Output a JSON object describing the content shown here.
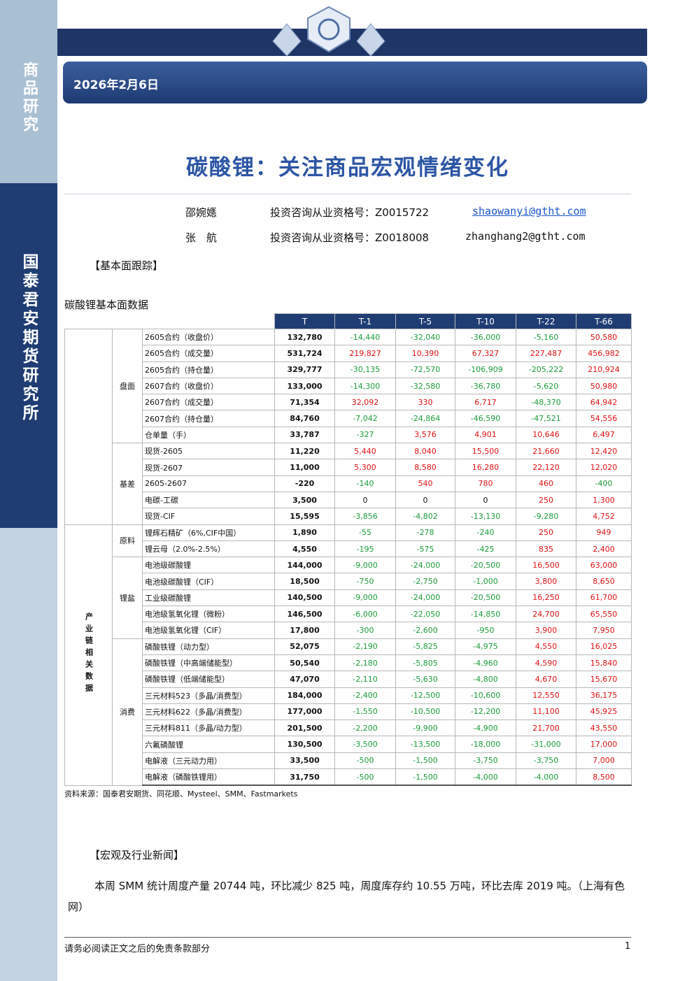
{
  "sidebar": {
    "top_label": "商品研究",
    "bottom_label": "国泰君安期货研究所"
  },
  "header": {
    "date": "2026年2月6日"
  },
  "title": "碳酸锂：关注商品宏观情绪变化",
  "authors": [
    {
      "name": "邵婉嫕",
      "qualification": "投资咨询从业资格号：Z0015722",
      "email": "shaowanyi@gtht.com"
    },
    {
      "name": "张　航",
      "qualification": "投资咨询从业资格号：Z0018008",
      "email": "zhanghang2@gtht.com"
    }
  ],
  "section1": "【基本面跟踪】",
  "table": {
    "caption": "碳酸锂基本面数据",
    "columns": [
      "T",
      "T-1",
      "T-5",
      "T-10",
      "T-22",
      "T-66"
    ],
    "blocks": [
      {
        "groups": [
          {
            "label": "盘面",
            "rows": [
              {
                "label": "2605合约（收盘价）",
                "values": [
                  "132,780",
                  "-14,440",
                  "-32,040",
                  "-36,000",
                  "-5,160",
                  "50,580"
                ]
              },
              {
                "label": "2605合约（成交量）",
                "values": [
                  "531,724",
                  "219,827",
                  "10,390",
                  "67,327",
                  "227,487",
                  "456,982"
                ]
              },
              {
                "label": "2605合约（持仓量）",
                "values": [
                  "329,777",
                  "-30,135",
                  "-72,570",
                  "-106,909",
                  "-205,222",
                  "210,924"
                ]
              },
              {
                "label": "2607合约（收盘价）",
                "values": [
                  "133,000",
                  "-14,300",
                  "-32,580",
                  "-36,780",
                  "-5,620",
                  "50,980"
                ]
              },
              {
                "label": "2607合约（成交量）",
                "values": [
                  "71,354",
                  "32,092",
                  "330",
                  "6,717",
                  "-48,370",
                  "64,942"
                ]
              },
              {
                "label": "2607合约（持仓量）",
                "values": [
                  "84,760",
                  "-7,042",
                  "-24,864",
                  "-46,590",
                  "-47,521",
                  "54,556"
                ]
              },
              {
                "label": "仓单量（手）",
                "values": [
                  "33,787",
                  "-327",
                  "3,576",
                  "4,901",
                  "10,646",
                  "6,497"
                ]
              }
            ]
          },
          {
            "label": "基差",
            "rows": [
              {
                "label": "现货-2605",
                "values": [
                  "11,220",
                  "5,440",
                  "8,040",
                  "15,500",
                  "21,660",
                  "12,420"
                ]
              },
              {
                "label": "现货-2607",
                "values": [
                  "11,000",
                  "5,300",
                  "8,580",
                  "16,280",
                  "22,120",
                  "12,020"
                ]
              },
              {
                "label": "2605-2607",
                "values": [
                  "-220",
                  "-140",
                  "540",
                  "780",
                  "460",
                  "-400"
                ]
              },
              {
                "label": "电碳-工碳",
                "values": [
                  "3,500",
                  "0",
                  "0",
                  "0",
                  "250",
                  "1,300"
                ]
              },
              {
                "label": "现货-CIF",
                "values": [
                  "15,595",
                  "-3,856",
                  "-4,802",
                  "-13,130",
                  "-9,280",
                  "4,752"
                ]
              }
            ]
          }
        ]
      },
      {
        "label": "产业链相关数据",
        "groups": [
          {
            "label": "原料",
            "rows": [
              {
                "label": "锂辉石精矿（6%,CIF中国）",
                "values": [
                  "1,890",
                  "-55",
                  "-278",
                  "-240",
                  "250",
                  "949"
                ]
              },
              {
                "label": "锂云母（2.0%-2.5%）",
                "values": [
                  "4,550",
                  "-195",
                  "-575",
                  "-425",
                  "835",
                  "2,400"
                ]
              }
            ]
          },
          {
            "label": "锂盐",
            "rows": [
              {
                "label": "电池级碳酸锂",
                "values": [
                  "144,000",
                  "-9,000",
                  "-24,000",
                  "-20,500",
                  "16,500",
                  "63,000"
                ]
              },
              {
                "label": "电池级碳酸锂（CIF）",
                "values": [
                  "18,500",
                  "-750",
                  "-2,750",
                  "-1,000",
                  "3,800",
                  "8,650"
                ]
              },
              {
                "label": "工业级碳酸锂",
                "values": [
                  "140,500",
                  "-9,000",
                  "-24,000",
                  "-20,500",
                  "16,250",
                  "61,700"
                ]
              },
              {
                "label": "电池级氢氧化锂（微粉）",
                "values": [
                  "146,500",
                  "-6,000",
                  "-22,050",
                  "-14,850",
                  "24,700",
                  "65,550"
                ]
              },
              {
                "label": "电池级氢氧化锂（CIF）",
                "values": [
                  "17,800",
                  "-300",
                  "-2,600",
                  "-950",
                  "3,900",
                  "7,950"
                ]
              }
            ]
          },
          {
            "label": "消费",
            "rows": [
              {
                "label": "磷酸铁锂（动力型）",
                "values": [
                  "52,075",
                  "-2,190",
                  "-5,825",
                  "-4,975",
                  "4,550",
                  "16,025"
                ]
              },
              {
                "label": "磷酸铁锂（中高端储能型）",
                "values": [
                  "50,540",
                  "-2,180",
                  "-5,805",
                  "-4,960",
                  "4,590",
                  "15,840"
                ]
              },
              {
                "label": "磷酸铁锂（低端储能型）",
                "values": [
                  "47,070",
                  "-2,110",
                  "-5,630",
                  "-4,800",
                  "4,670",
                  "15,670"
                ]
              },
              {
                "label": "三元材料523（多晶/消费型）",
                "values": [
                  "184,000",
                  "-2,400",
                  "-12,500",
                  "-10,600",
                  "12,550",
                  "36,175"
                ]
              },
              {
                "label": "三元材料622（多晶/消费型）",
                "values": [
                  "177,000",
                  "-1,550",
                  "-10,500",
                  "-12,200",
                  "11,100",
                  "45,925"
                ]
              },
              {
                "label": "三元材料811（多晶/动力型）",
                "values": [
                  "201,500",
                  "-2,200",
                  "-9,900",
                  "-4,900",
                  "21,700",
                  "43,550"
                ]
              },
              {
                "label": "六氟磷酸锂",
                "values": [
                  "130,500",
                  "-3,500",
                  "-13,500",
                  "-18,000",
                  "-31,000",
                  "17,000"
                ]
              },
              {
                "label": "电解液（三元动力用）",
                "values": [
                  "33,500",
                  "-500",
                  "-1,500",
                  "-3,750",
                  "-3,750",
                  "7,000"
                ]
              },
              {
                "label": "电解液（磷酸铁锂用）",
                "values": [
                  "31,750",
                  "-500",
                  "-1,500",
                  "-4,000",
                  "-4,000",
                  "8,500"
                ]
              }
            ]
          }
        ]
      }
    ],
    "source": "资料来源：国泰君安期货、同花顺、Mysteel、SMM、Fastmarkets"
  },
  "section2": "【宏观及行业新闻】",
  "news": "本周 SMM 统计周度产量 20744 吨，环比减少 825 吨，周度库存约 10.55 万吨，环比去库 2019 吨。（上海有色网）",
  "footer": {
    "disclaimer": "请务必阅读正文之后的免责条款部分",
    "page": "1"
  }
}
